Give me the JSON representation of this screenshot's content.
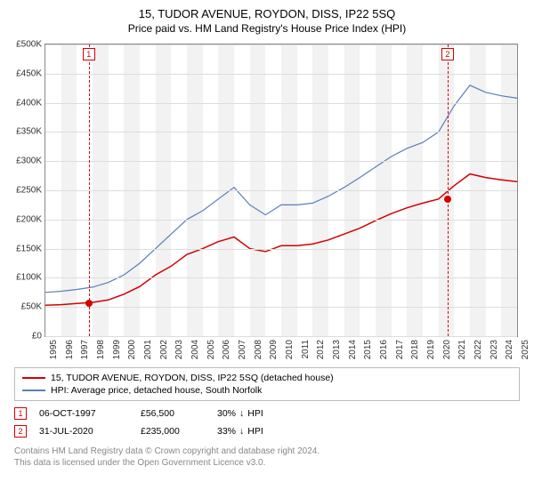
{
  "title": "15, TUDOR AVENUE, ROYDON, DISS, IP22 5SQ",
  "subtitle": "Price paid vs. HM Land Registry's House Price Index (HPI)",
  "chart": {
    "type": "line",
    "background_color": "#ffffff",
    "grid_band_color": "#f2f2f2",
    "grid_line_color": "#dddddd",
    "axis_color": "#888888",
    "x_years": [
      1995,
      1996,
      1997,
      1998,
      1999,
      2000,
      2001,
      2002,
      2003,
      2004,
      2005,
      2006,
      2007,
      2008,
      2009,
      2010,
      2011,
      2012,
      2013,
      2014,
      2015,
      2016,
      2017,
      2018,
      2019,
      2020,
      2021,
      2022,
      2023,
      2024,
      2025
    ],
    "x_min": 1995,
    "x_max": 2025,
    "y_min": 0,
    "y_max": 500000,
    "y_step": 50000,
    "y_prefix": "£",
    "y_suffix": "K",
    "tick_fontsize": 10,
    "series": [
      {
        "name": "price_paid",
        "label": "15, TUDOR AVENUE, ROYDON, DISS, IP22 5SQ (detached house)",
        "color": "#d40000",
        "line_width": 1.5,
        "x": [
          1995,
          1996,
          1997,
          1998,
          1999,
          2000,
          2001,
          2002,
          2003,
          2004,
          2005,
          2006,
          2007,
          2008,
          2009,
          2010,
          2011,
          2012,
          2013,
          2014,
          2015,
          2016,
          2017,
          2018,
          2019,
          2020,
          2021,
          2022,
          2023,
          2024,
          2025
        ],
        "y": [
          53000,
          54000,
          56000,
          58000,
          62000,
          72000,
          85000,
          105000,
          120000,
          140000,
          150000,
          162000,
          170000,
          150000,
          145000,
          155000,
          155000,
          158000,
          165000,
          175000,
          185000,
          198000,
          210000,
          220000,
          228000,
          235000,
          258000,
          278000,
          272000,
          268000,
          265000
        ]
      },
      {
        "name": "hpi",
        "label": "HPI: Average price, detached house, South Norfolk",
        "color": "#5b7fb8",
        "line_width": 1.2,
        "x": [
          1995,
          1996,
          1997,
          1998,
          1999,
          2000,
          2001,
          2002,
          2003,
          2004,
          2005,
          2006,
          2007,
          2008,
          2009,
          2010,
          2011,
          2012,
          2013,
          2014,
          2015,
          2016,
          2017,
          2018,
          2019,
          2020,
          2021,
          2022,
          2023,
          2024,
          2025
        ],
        "y": [
          75000,
          77000,
          80000,
          84000,
          92000,
          105000,
          125000,
          150000,
          175000,
          200000,
          215000,
          235000,
          255000,
          225000,
          208000,
          225000,
          225000,
          228000,
          240000,
          255000,
          272000,
          290000,
          308000,
          322000,
          332000,
          350000,
          395000,
          430000,
          418000,
          412000,
          408000
        ]
      }
    ],
    "reference_markers": [
      {
        "id": "1",
        "year": 1997.76,
        "line_color": "#d40000",
        "point_color": "#d40000",
        "point_y": 56500
      },
      {
        "id": "2",
        "year": 2020.58,
        "line_color": "#d40000",
        "point_color": "#d40000",
        "point_y": 235000
      }
    ]
  },
  "legend": {
    "border_color": "#bbbbbb",
    "items": [
      {
        "color": "#d40000",
        "label": "15, TUDOR AVENUE, ROYDON, DISS, IP22 5SQ (detached house)"
      },
      {
        "color": "#5b7fb8",
        "label": "HPI: Average price, detached house, South Norfolk"
      }
    ]
  },
  "transactions": [
    {
      "id": "1",
      "marker_color": "#d40000",
      "date": "06-OCT-1997",
      "price": "£56,500",
      "pct": "30%",
      "direction": "↓",
      "suffix": "HPI"
    },
    {
      "id": "2",
      "marker_color": "#d40000",
      "date": "31-JUL-2020",
      "price": "£235,000",
      "pct": "33%",
      "direction": "↓",
      "suffix": "HPI"
    }
  ],
  "footer_line1": "Contains HM Land Registry data © Crown copyright and database right 2024.",
  "footer_line2": "This data is licensed under the Open Government Licence v3.0."
}
